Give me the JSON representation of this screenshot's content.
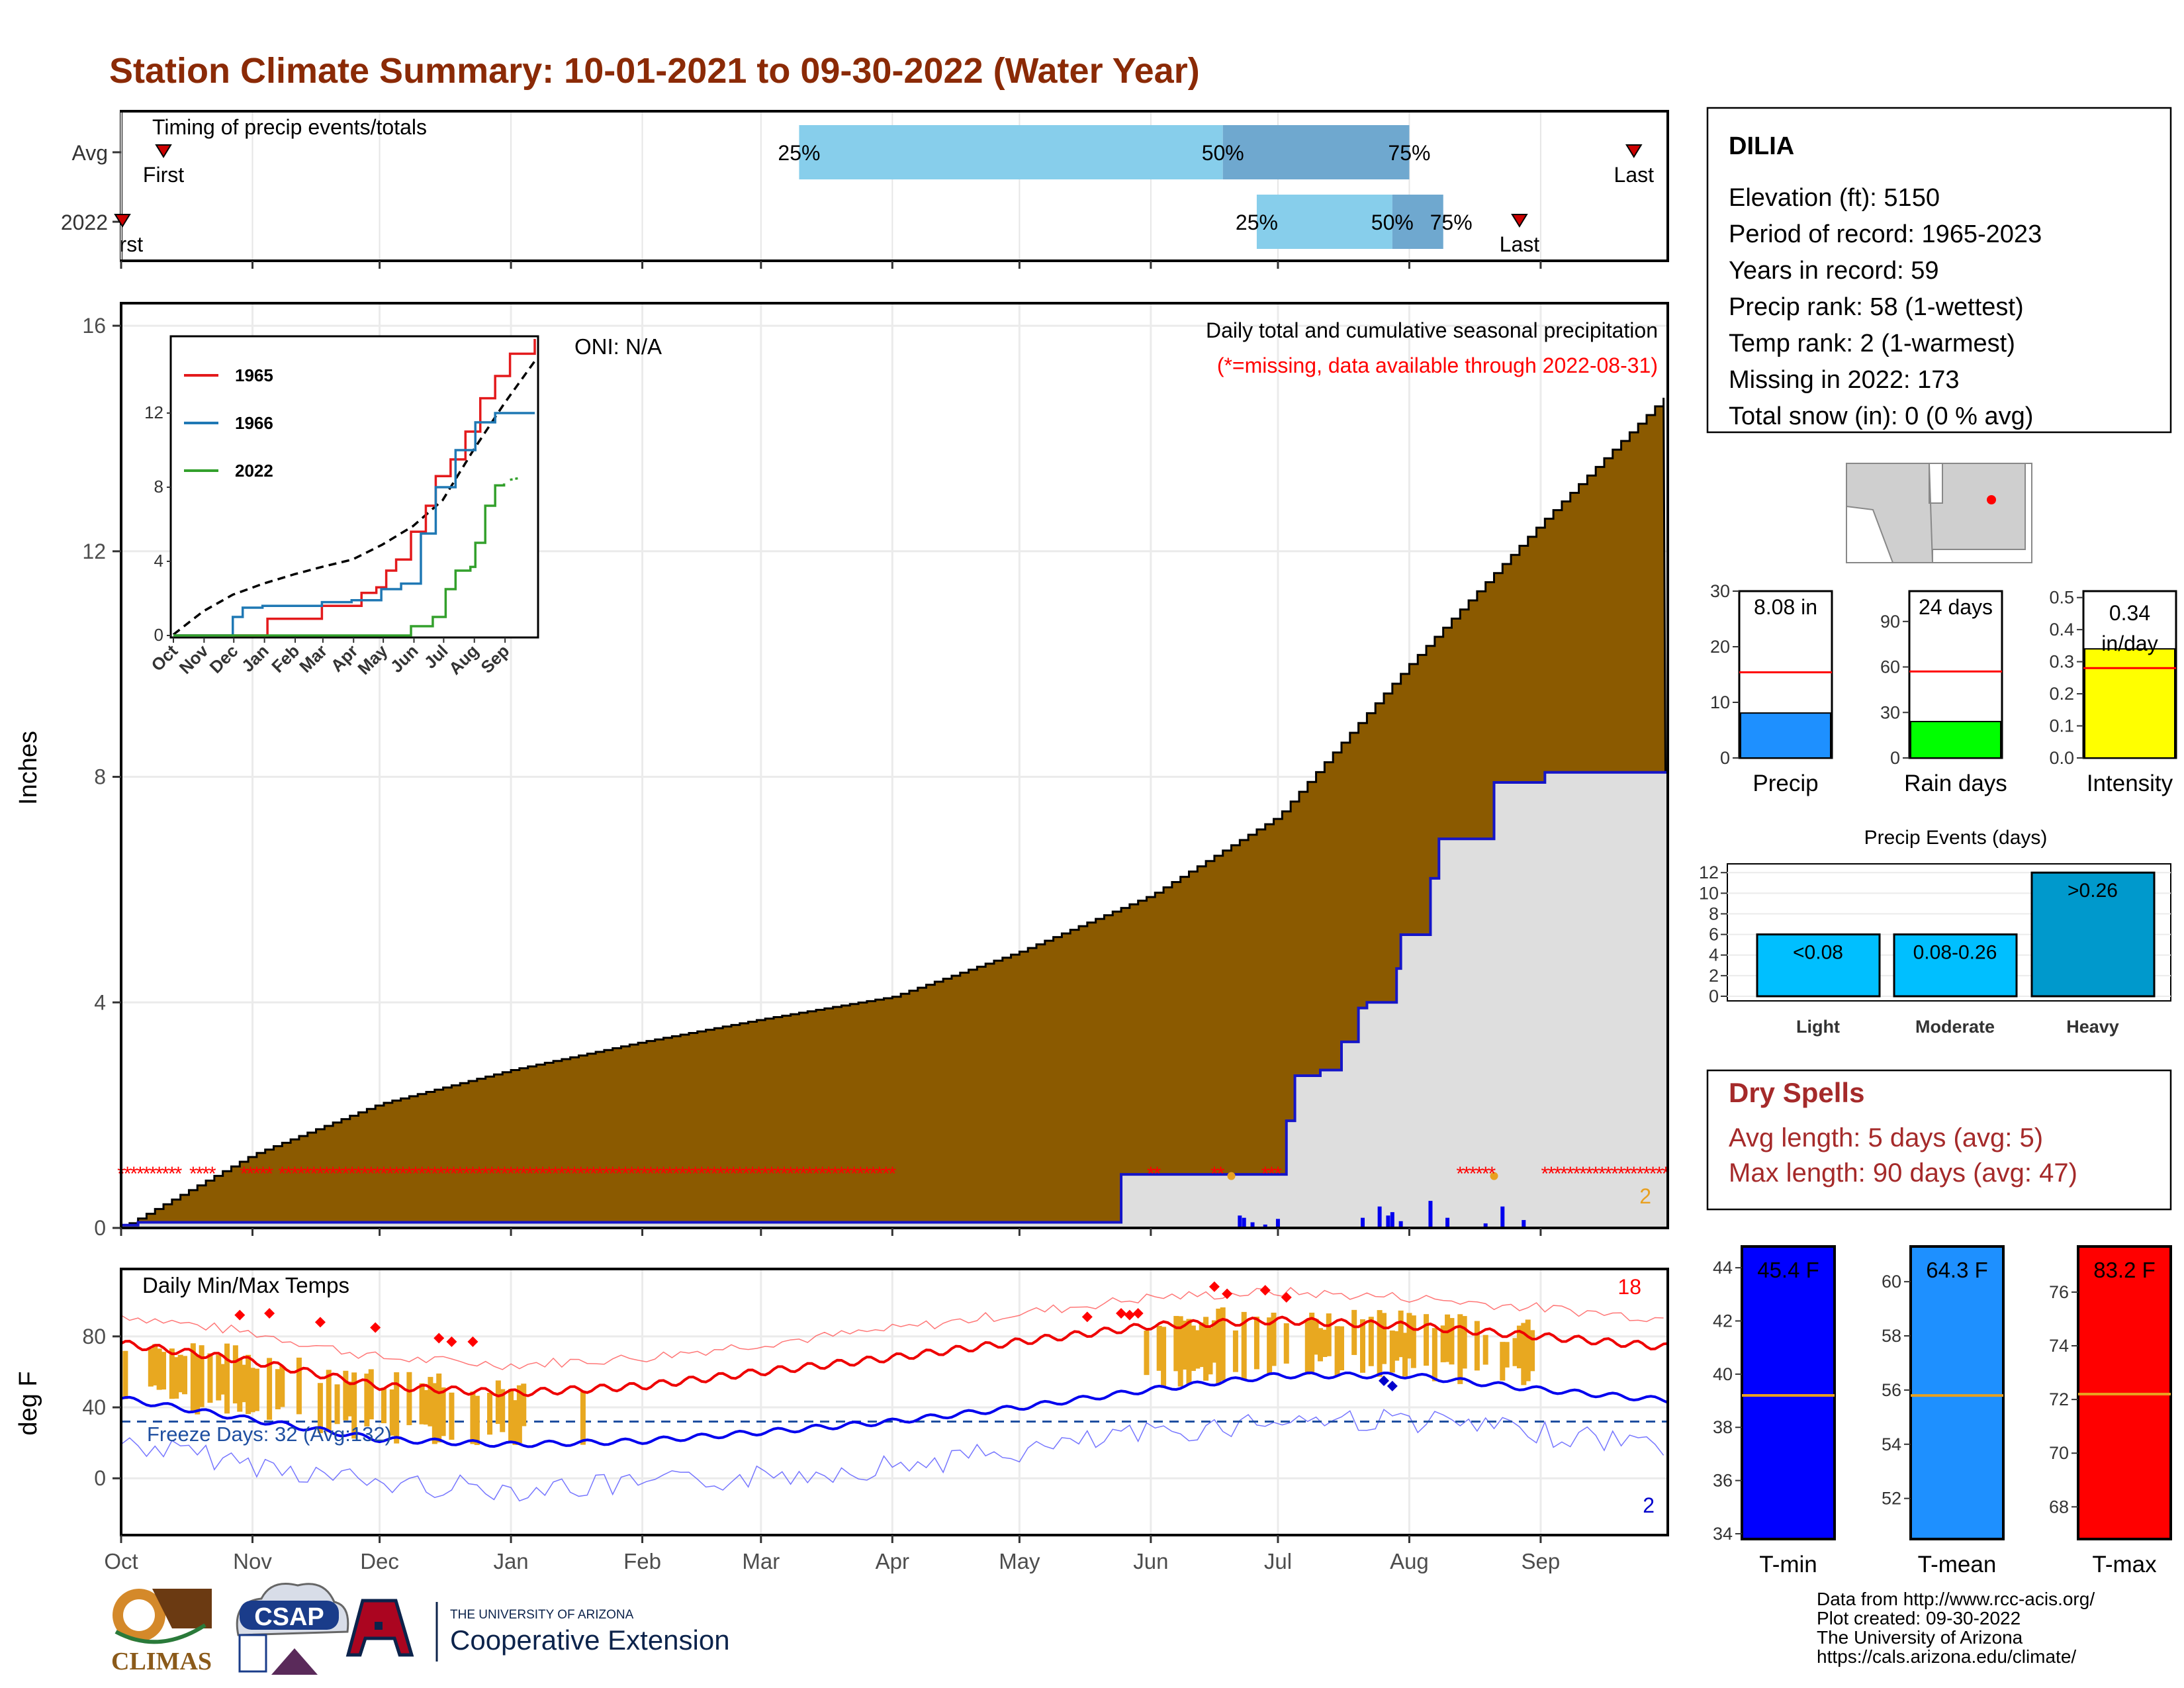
{
  "title": "Station Climate Summary: 10-01-2021 to 09-30-2022 (Water Year)",
  "colors": {
    "title": "#8b2a06",
    "precip_fill": "#8b5a00",
    "normal_fill": "#dedede",
    "line_blue": "#1515c8",
    "marker_red": "#ff0000",
    "temp_bar": "#e8a820",
    "bar_light": "#87ceeb",
    "bar_dark": "#6fa8cf",
    "gauge_precip": "#1e90ff",
    "gauge_raindays": "#00ff00",
    "gauge_intensity": "#ffff00",
    "event_bar": "#00bfff",
    "event_heavy": "#0099cc",
    "tmin": "#0000ff",
    "tmean": "#1e90ff",
    "tmax": "#ff0000",
    "dry_text": "#a52a2a"
  },
  "timing_panel": {
    "label": "Timing of precip events/totals",
    "rows": [
      {
        "label": "Avg",
        "first_day": 10,
        "last_day": 357,
        "p25": 160,
        "p50": 260,
        "p75": 304,
        "labels": {
          "first": "First",
          "last": "Last",
          "p25": "25%",
          "p50": "50%",
          "p75": "75%"
        }
      },
      {
        "label": "2022",
        "first_day": 0,
        "last_day": 330,
        "p25": 268,
        "p50": 300,
        "p75": 312,
        "labels": {
          "first": "First",
          "last": "Last",
          "p25": "25%",
          "p50": "50%",
          "p75": "75%"
        }
      }
    ]
  },
  "months": [
    "Oct",
    "Nov",
    "Dec",
    "Jan",
    "Feb",
    "Mar",
    "Apr",
    "May",
    "Jun",
    "Jul",
    "Aug",
    "Sep"
  ],
  "precip_panel": {
    "ylabel": "Inches",
    "yticks": [
      0,
      4,
      8,
      12,
      16
    ],
    "ylim": [
      0,
      16
    ],
    "oni": "ONI: N/A",
    "caption": "Daily total and cumulative seasonal precipitation",
    "missing_note": "(*=missing, data available through 2022-08-31)",
    "count_label": "2"
  },
  "inset": {
    "legend": [
      "1965",
      "1966",
      "2022"
    ],
    "yticks": [
      0,
      4,
      8,
      12
    ],
    "xticks": [
      "Oct",
      "Nov",
      "Dec",
      "Jan",
      "Feb",
      "Mar",
      "Apr",
      "May",
      "Jun",
      "Jul",
      "Aug",
      "Sep"
    ]
  },
  "temp_panel": {
    "label": "Daily Min/Max Temps",
    "ylabel": "deg F",
    "yticks": [
      0,
      40,
      80
    ],
    "freeze_text": "Freeze Days: 32 (Avg:132)",
    "max_count": "18",
    "min_count": "2"
  },
  "station": {
    "name": "DILIA",
    "lines": [
      "Elevation (ft): 5150",
      "Period of record: 1965-2023",
      "Years in record: 59",
      "Precip rank: 58 (1-wettest)",
      "Temp rank: 2 (1-warmest)",
      "Missing in 2022: 173",
      "Total snow (in): 0 (0 % avg)"
    ]
  },
  "gauges": [
    {
      "label": "Precip",
      "value": 8.08,
      "avg": 15.4,
      "max": 30,
      "ticks": [
        0,
        10,
        20,
        30
      ],
      "text": "8.08 in"
    },
    {
      "label": "Rain days",
      "value": 24,
      "avg": 57,
      "max": 110,
      "ticks": [
        0,
        30,
        60,
        90
      ],
      "text": "24 days"
    },
    {
      "label": "Intensity",
      "value": 0.34,
      "avg": 0.28,
      "max": 0.52,
      "ticks": [
        "0.0",
        "0.1",
        "0.2",
        "0.3",
        "0.4",
        "0.5"
      ],
      "tickvals": [
        0,
        0.1,
        0.2,
        0.3,
        0.4,
        0.5
      ],
      "text": "0.34 in/day"
    }
  ],
  "precip_events": {
    "title": "Precip Events (days)",
    "yticks": [
      0,
      2,
      4,
      6,
      8,
      10,
      12
    ],
    "categories": [
      "Light",
      "Moderate",
      "Heavy"
    ],
    "values": [
      6,
      6,
      12
    ],
    "labels": [
      "<0.08",
      "0.08-0.26",
      ">0.26"
    ]
  },
  "dry_spells": {
    "title": "Dry Spells",
    "avg": "Avg length: 5 days (avg: 5)",
    "max": "Max length: 90 days (avg: 47)"
  },
  "temp_gauges": [
    {
      "label": "T-min",
      "value": 45.4,
      "avg": 39.2,
      "min": 33.8,
      "max": 44.8,
      "ticks": [
        34,
        36,
        38,
        40,
        42,
        44
      ],
      "text": "45.4 F"
    },
    {
      "label": "T-mean",
      "value": 64.3,
      "avg": 55.8,
      "min": 50.5,
      "max": 61.3,
      "ticks": [
        52,
        54,
        56,
        58,
        60
      ],
      "text": "64.3 F"
    },
    {
      "label": "T-max",
      "value": 83.2,
      "avg": 72.2,
      "min": 66.8,
      "max": 77.7,
      "ticks": [
        68,
        70,
        72,
        74,
        76
      ],
      "text": "83.2 F"
    }
  ],
  "credits": [
    "Data from http://www.rcc-acis.org/",
    "Plot created: 09-30-2022",
    "The University of Arizona",
    "https://cals.arizona.edu/climate/"
  ],
  "logos": {
    "climas": "CLIMAS",
    "csap": "CSAP",
    "ua_small": "THE UNIVERSITY OF ARIZONA",
    "ua_big": "Cooperative Extension"
  },
  "chart_data": {
    "type": "area",
    "title": "Daily total and cumulative seasonal precipitation",
    "ylabel": "Inches",
    "ylim": [
      0,
      16
    ],
    "x": [
      "Oct",
      "Nov",
      "Dec",
      "Jan",
      "Feb",
      "Mar",
      "Apr",
      "May",
      "Jun",
      "Jul",
      "Aug",
      "Sep",
      "Oct"
    ],
    "series": [
      {
        "name": "Average cumulative",
        "values": [
          0.0,
          1.3,
          2.2,
          2.8,
          3.3,
          3.7,
          4.1,
          4.9,
          5.9,
          7.3,
          10.0,
          12.5,
          14.8
        ]
      },
      {
        "name": "2022 cumulative",
        "values": [
          0.1,
          0.1,
          0.1,
          0.1,
          0.1,
          0.1,
          0.1,
          0.1,
          0.95,
          2.7,
          6.0,
          8.08,
          8.08
        ]
      }
    ],
    "temp_series": [
      {
        "name": "Avg max",
        "values": [
          76,
          66,
          52,
          48,
          52,
          60,
          68,
          77,
          86,
          89,
          86,
          80,
          74
        ]
      },
      {
        "name": "Avg min",
        "values": [
          45,
          33,
          22,
          19,
          21,
          26,
          32,
          40,
          50,
          58,
          58,
          50,
          44
        ]
      }
    ],
    "freeze_line": 32
  }
}
